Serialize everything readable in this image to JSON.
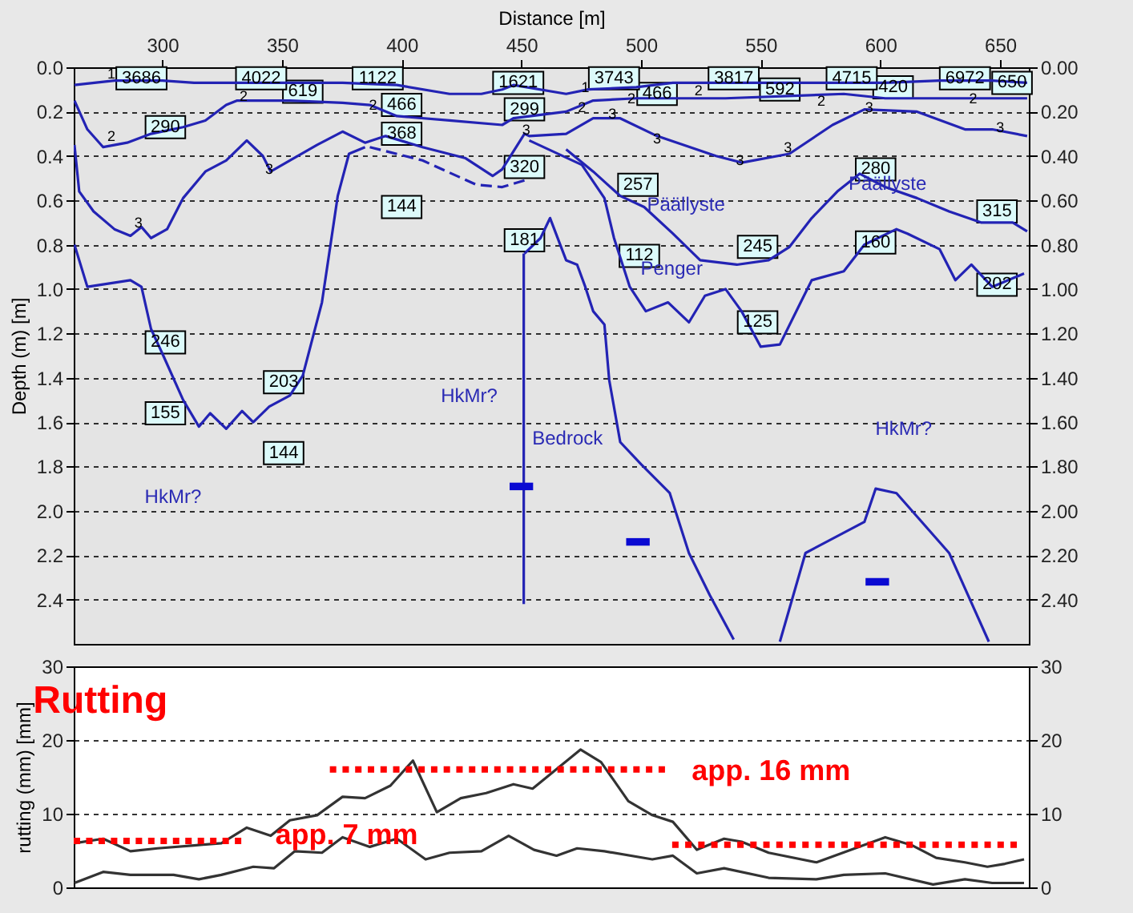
{
  "chart_data": [
    {
      "type": "line",
      "xlabel": "Distance [m]",
      "ylabel": "Depth (m) [m]",
      "xlim": [
        263,
        662
      ],
      "xticks": [
        300,
        350,
        400,
        450,
        500,
        550,
        600,
        650
      ],
      "ylim": [
        2.6,
        0
      ],
      "yticks": [
        {
          "value": 0,
          "label": "0.0"
        },
        0.2,
        0.4,
        0.6,
        0.8,
        {
          "value": 1,
          "label": "1.0"
        },
        1.2,
        1.4,
        1.6,
        1.8,
        {
          "value": 2,
          "label": "2.0"
        },
        2.2,
        2.4
      ],
      "y2lim": [
        2.6,
        0
      ],
      "y2ticks": [
        {
          "value": 0,
          "label": "0.00"
        },
        {
          "value": 0.2,
          "label": "0.20"
        },
        {
          "value": 0.4,
          "label": "0.40"
        },
        {
          "value": 0.6,
          "label": "0.60"
        },
        {
          "value": 0.8,
          "label": "0.80"
        },
        {
          "value": 1,
          "label": "1.00"
        },
        {
          "value": 1.2,
          "label": "1.20"
        },
        {
          "value": 1.4,
          "label": "1.40"
        },
        {
          "value": 1.6,
          "label": "1.60"
        },
        {
          "value": 1.8,
          "label": "1.80"
        },
        {
          "value": 2,
          "label": "2.00"
        },
        {
          "value": 2.2,
          "label": "2.20"
        },
        {
          "value": 2.4,
          "label": "2.40"
        }
      ],
      "grid": "y",
      "line_style": "solid",
      "series": [
        {
          "color": "#2323b4",
          "x": [
            263.3,
            280,
            300,
            313.3,
            331.3,
            353.3,
            375.3,
            398,
            420,
            433.3,
            442,
            446.7,
            468.7,
            478,
            498,
            513.3,
            535.3,
            558,
            580,
            602,
            624.7,
            646.7,
            661.3
          ],
          "values": [
            0.08,
            0.06,
            0.06,
            0.07,
            0.07,
            0.07,
            0.07,
            0.08,
            0.12,
            0.12,
            0.1,
            0.08,
            0.12,
            0.1,
            0.09,
            0.07,
            0.07,
            0.07,
            0.07,
            0.07,
            0.06,
            0.06,
            0.07
          ]
        },
        {
          "color": "#2323b4",
          "x": [
            263.3,
            268.7,
            275.3,
            285.3,
            295.3,
            308.7,
            318,
            326.7,
            331.3,
            353.3,
            375.3,
            386.7,
            398,
            420,
            442,
            446.7,
            468.7,
            480,
            498,
            535.3,
            584.7,
            602,
            638,
            661.3
          ],
          "values": [
            0.15,
            0.28,
            0.36,
            0.34,
            0.3,
            0.27,
            0.24,
            0.17,
            0.15,
            0.15,
            0.16,
            0.17,
            0.22,
            0.24,
            0.26,
            0.23,
            0.2,
            0.15,
            0.14,
            0.14,
            0.12,
            0.14,
            0.14,
            0.14
          ]
        },
        {
          "color": "#2323b4",
          "x": [
            263.3,
            265.3,
            271.3,
            280,
            286.7,
            291.3,
            295.3,
            302,
            308.7,
            318,
            326.7,
            335.3,
            342,
            345.3,
            353.3,
            364.7,
            375.3,
            384.7,
            393.3,
            408.7,
            426.7,
            438,
            442,
            451.3,
            453.3,
            468.7,
            480,
            491.3,
            506.7,
            531.3,
            542,
            562,
            580,
            593.3,
            615.3,
            635.3,
            646.7,
            661.3
          ],
          "values": [
            0.35,
            0.56,
            0.65,
            0.73,
            0.76,
            0.72,
            0.77,
            0.73,
            0.59,
            0.47,
            0.42,
            0.33,
            0.4,
            0.47,
            0.42,
            0.35,
            0.29,
            0.34,
            0.31,
            0.36,
            0.41,
            0.49,
            0.46,
            0.3,
            0.31,
            0.3,
            0.23,
            0.23,
            0.31,
            0.4,
            0.43,
            0.39,
            0.26,
            0.19,
            0.2,
            0.28,
            0.28,
            0.31
          ]
        },
        {
          "color": "#2323b4",
          "line_style": "dashed",
          "x": [
            386.7,
            408.7,
            431.3,
            442,
            451.3
          ],
          "values": [
            0.36,
            0.42,
            0.53,
            0.54,
            0.51
          ]
        },
        {
          "color": "#2323b4",
          "x": [
            468.7,
            480,
            491.3,
            501.3,
            513.3,
            524.7,
            540,
            553.3,
            562,
            571.3,
            582,
            591.3,
            602,
            615.3,
            628.7,
            642,
            655.3,
            661.3
          ],
          "values": [
            0.37,
            0.47,
            0.58,
            0.63,
            0.75,
            0.87,
            0.89,
            0.87,
            0.81,
            0.68,
            0.56,
            0.48,
            0.54,
            0.59,
            0.65,
            0.7,
            0.7,
            0.74
          ]
        },
        {
          "color": "#2323b4",
          "x": [
            453.3,
            475.3,
            484.7,
            488.7,
            495.3,
            502,
            511.3,
            520,
            526.7,
            535.3,
            542,
            550,
            558,
            566.7,
            571.3,
            584.7,
            593.3,
            606.7,
            611.3,
            624.7,
            631.3,
            638,
            646.7,
            660
          ],
          "values": [
            0.33,
            0.44,
            0.59,
            0.77,
            0.99,
            1.1,
            1.06,
            1.15,
            1.03,
            1,
            1.1,
            1.26,
            1.25,
            1.06,
            0.96,
            0.92,
            0.8,
            0.73,
            0.75,
            0.82,
            0.96,
            0.89,
            0.99,
            0.93
          ]
        },
        {
          "color": "#2323b4",
          "x": [
            451.3,
            458,
            462,
            468.7,
            473.3,
            476.7,
            480,
            484.7,
            486.7,
            491.3,
            500,
            512,
            520,
            528.7,
            538.7
          ],
          "values": [
            0.84,
            0.77,
            0.68,
            0.87,
            0.89,
            0.99,
            1.1,
            1.16,
            1.41,
            1.69,
            1.79,
            1.92,
            2.19,
            2.38,
            2.58
          ]
        },
        {
          "color": "#2323b4",
          "x": [
            263.3,
            268.7,
            286.7,
            291.3,
            295.3,
            300,
            308.7,
            315.3,
            320,
            326.7,
            333.3,
            338,
            344.7,
            353.3,
            358.7,
            366.7,
            373.3,
            378,
            384.7
          ],
          "values": [
            0.8,
            0.99,
            0.96,
            0.99,
            1.18,
            1.29,
            1.5,
            1.62,
            1.56,
            1.63,
            1.55,
            1.6,
            1.53,
            1.48,
            1.39,
            1.06,
            0.58,
            0.39,
            0.36
          ]
        },
        {
          "color": "#2323b4",
          "x": [
            558,
            568.7,
            593.3,
            598,
            606.7,
            628.7,
            645.3
          ],
          "values": [
            2.59,
            2.19,
            2.05,
            1.9,
            1.92,
            2.19,
            2.59
          ]
        },
        {
          "color": "#2323b4",
          "x": [
            451,
            451
          ],
          "values": [
            0.84,
            2.42
          ]
        },
        {
          "type": "scatter",
          "marker": "square",
          "color": "#0a0ad2",
          "x": [
            450,
            498.7,
            598.7
          ],
          "values": [
            1.89,
            2.14,
            2.32
          ]
        }
      ],
      "annotations": [
        {
          "text": "3686",
          "x": 291.3,
          "y": 0.05
        },
        {
          "text": "4022",
          "x": 341.3,
          "y": 0.05
        },
        {
          "text": "619",
          "x": 358.7,
          "y": 0.11
        },
        {
          "text": "1122",
          "x": 390,
          "y": 0.05
        },
        {
          "text": "466",
          "x": 400,
          "y": 0.17
        },
        {
          "text": "290",
          "x": 301.3,
          "y": 0.27
        },
        {
          "text": "368",
          "x": 400,
          "y": 0.3
        },
        {
          "text": "144",
          "x": 400,
          "y": 0.63
        },
        {
          "text": "1621",
          "x": 448.7,
          "y": 0.07
        },
        {
          "text": "299",
          "x": 451.3,
          "y": 0.19
        },
        {
          "text": "320",
          "x": 451.3,
          "y": 0.45
        },
        {
          "text": "181",
          "x": 451.3,
          "y": 0.78
        },
        {
          "text": "3743",
          "x": 488.7,
          "y": 0.05
        },
        {
          "text": "466",
          "x": 506.7,
          "y": 0.12
        },
        {
          "text": "3817",
          "x": 538.7,
          "y": 0.05
        },
        {
          "text": "592",
          "x": 558,
          "y": 0.1
        },
        {
          "text": "4715",
          "x": 588,
          "y": 0.05
        },
        {
          "text": "420",
          "x": 605.3,
          "y": 0.09
        },
        {
          "text": "6972",
          "x": 635.3,
          "y": 0.05
        },
        {
          "text": "650",
          "x": 655,
          "y": 0.07
        },
        {
          "text": "257",
          "x": 498.7,
          "y": 0.53
        },
        {
          "text": "280",
          "x": 598,
          "y": 0.46
        },
        {
          "text": "315",
          "x": 648.7,
          "y": 0.65
        },
        {
          "text": "112",
          "x": 499.3,
          "y": 0.85
        },
        {
          "text": "245",
          "x": 548.7,
          "y": 0.81
        },
        {
          "text": "160",
          "x": 598,
          "y": 0.79
        },
        {
          "text": "202",
          "x": 648.7,
          "y": 0.98
        },
        {
          "text": "125",
          "x": 548.7,
          "y": 1.15
        },
        {
          "text": "246",
          "x": 301.3,
          "y": 1.24
        },
        {
          "text": "203",
          "x": 350.7,
          "y": 1.42
        },
        {
          "text": "155",
          "x": 301.3,
          "y": 1.56
        },
        {
          "text": "144",
          "x": 350.7,
          "y": 1.74
        },
        "HkMr?",
        "HkMr?",
        "HkMr?",
        "Bedrock",
        "Päällyste",
        "Päällyste",
        "Penger",
        {
          "text": "1",
          "x": 278.7,
          "y": 0.03
        },
        {
          "text": "1",
          "x": 476.7,
          "y": 0.09
        },
        {
          "text": "2",
          "x": 334,
          "y": 0.13
        },
        {
          "text": "2",
          "x": 388,
          "y": 0.17
        },
        {
          "text": "2",
          "x": 278.7,
          "y": 0.31
        },
        {
          "text": "2",
          "x": 475.3,
          "y": 0.18
        },
        {
          "text": "2",
          "x": 496,
          "y": 0.14
        },
        {
          "text": "2",
          "x": 524,
          "y": 0.105
        },
        {
          "text": "2",
          "x": 575.3,
          "y": 0.15
        },
        {
          "text": "2",
          "x": 638.7,
          "y": 0.14
        },
        {
          "text": "3",
          "x": 290,
          "y": 0.7
        },
        {
          "text": "3",
          "x": 344.7,
          "y": 0.46
        },
        {
          "text": "3",
          "x": 452,
          "y": 0.28
        },
        {
          "text": "3",
          "x": 488,
          "y": 0.21
        },
        {
          "text": "3",
          "x": 506.7,
          "y": 0.32
        },
        {
          "text": "3",
          "x": 541.3,
          "y": 0.42
        },
        {
          "text": "3",
          "x": 561.3,
          "y": 0.36
        },
        {
          "text": "3",
          "x": 595.3,
          "y": 0.18
        },
        {
          "text": "3",
          "x": 650,
          "y": 0.27
        }
      ]
    },
    {
      "type": "line",
      "title": "Rutting",
      "ylabel": "rutting (mm) [mm]",
      "xlim": [
        263,
        662
      ],
      "ylim": [
        0,
        30
      ],
      "yticks": [
        0,
        10,
        20,
        30
      ],
      "y2lim": [
        0,
        30
      ],
      "y2ticks": [
        0,
        10,
        20,
        30
      ],
      "grid": "y",
      "tick_labels": "y",
      "series": [
        {
          "color": "#333333",
          "x": [
            263.3,
            275.3,
            286.7,
            298,
            313.3,
            324.7,
            335.3,
            345.3,
            353.3,
            364.7,
            375.3,
            384.7,
            395.3,
            404.7,
            414.7,
            424.7,
            435.3,
            446.7,
            454.7,
            474.7,
            483.3,
            494.7,
            504.7,
            513.3,
            523.3,
            534.7,
            542,
            553.3,
            573.3,
            602,
            613.3,
            623.3,
            635.3,
            644.7,
            652,
            660
          ],
          "values": [
            6,
            6.6,
            4.9,
            5.3,
            5.7,
            6,
            8.1,
            7,
            9.1,
            9.8,
            12.3,
            12.1,
            13.8,
            17.2,
            10.2,
            12.1,
            12.8,
            14,
            13.4,
            18.7,
            17,
            11.7,
            9.8,
            8.9,
            5.1,
            6.6,
            6.2,
            4.7,
            3.4,
            6.8,
            5.7,
            4,
            3.4,
            2.8,
            3.2,
            3.8
          ]
        },
        {
          "color": "#333333",
          "x": [
            263.3,
            275.3,
            286.7,
            304.7,
            315.3,
            324.7,
            338,
            346.7,
            355.3,
            366.7,
            375.3,
            386.7,
            398,
            410,
            420,
            433.3,
            444.7,
            455.3,
            464.7,
            473.3,
            484.7,
            504.7,
            513.3,
            523.3,
            534.7,
            553.3,
            573.3,
            584.7,
            602,
            622,
            635.3,
            646.7,
            660
          ],
          "values": [
            0.6,
            2.1,
            1.7,
            1.7,
            1.1,
            1.7,
            2.8,
            2.6,
            4.9,
            4.7,
            6.8,
            5.5,
            6.6,
            3.8,
            4.7,
            4.9,
            7,
            5.1,
            4.3,
            5.3,
            4.9,
            3.8,
            4.3,
            1.9,
            2.6,
            1.3,
            1.1,
            1.7,
            1.9,
            0.4,
            1.1,
            0.6,
            0.6
          ]
        },
        {
          "color": "#ff0000",
          "line_style": "dotted",
          "x": [
            370,
            510
          ],
          "values": [
            16,
            16
          ]
        },
        {
          "color": "#ff0000",
          "line_style": "dotted",
          "x": [
            263,
            333
          ],
          "values": [
            6.3,
            6.3
          ]
        },
        {
          "color": "#ff0000",
          "line_style": "dotted",
          "x": [
            513,
            657
          ],
          "values": [
            5.8,
            5.8
          ]
        }
      ],
      "annotations": [
        "app. 16 mm",
        {
          "text": "app. 7 mm",
          "x": 377,
          "y": 7
        }
      ]
    }
  ]
}
